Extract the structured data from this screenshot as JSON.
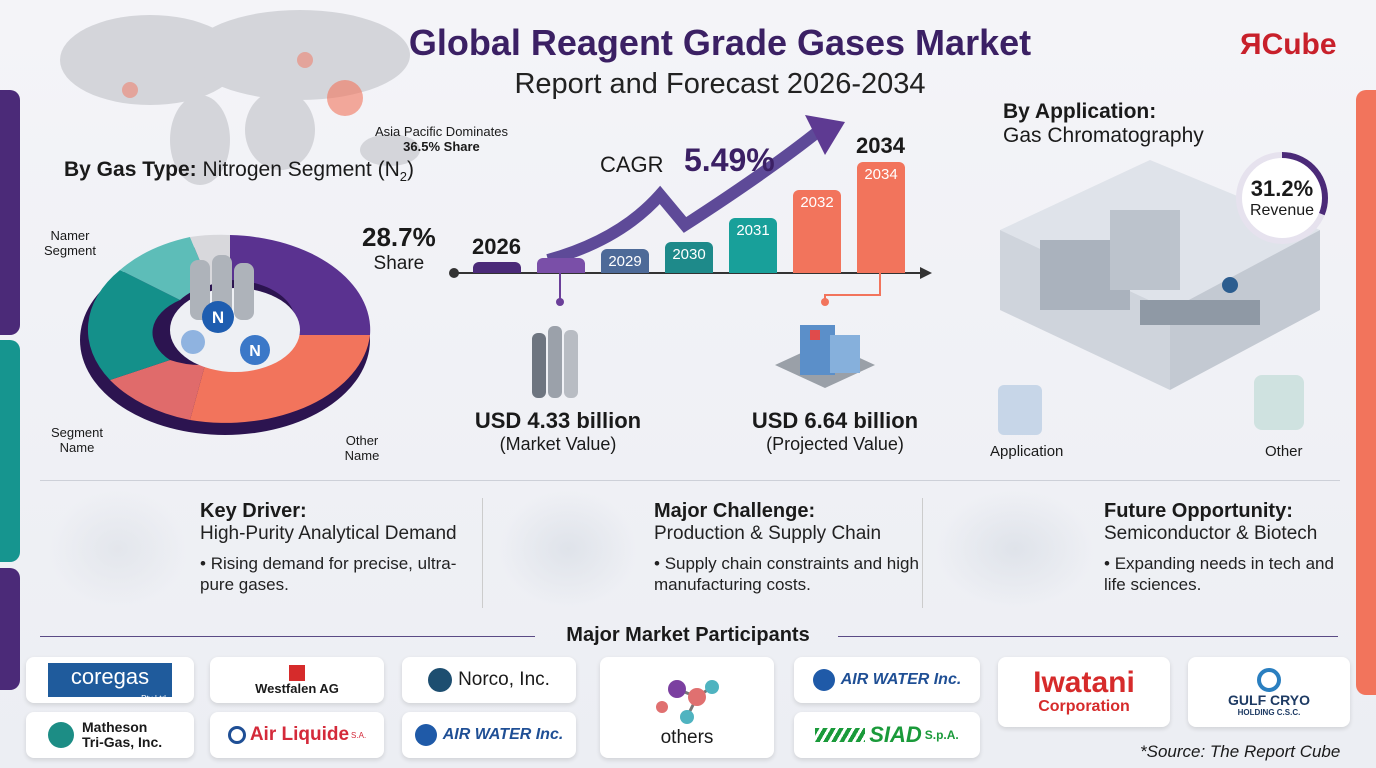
{
  "header": {
    "title": "Global Reagent Grade Gases Market",
    "subtitle": "Report and Forecast 2026-2034",
    "logo": "ЯCube"
  },
  "map": {
    "label": "Asia Pacific Dominates",
    "share": "36.5% Share"
  },
  "gas_type": {
    "heading": "By Gas Type:",
    "segment": "Nitrogen Segment (N",
    "sub": "2",
    "close": ")",
    "share_value": "28.7%",
    "share_label": "Share",
    "labels": [
      "Namer Segment",
      "Segment Name",
      "Other Name"
    ],
    "molecule": "N"
  },
  "timeline": {
    "cagr_label": "CAGR",
    "cagr_value": "5.49%",
    "start_year": "2026",
    "end_year": "2034",
    "bars": [
      "",
      "",
      "2029",
      "2030",
      "2031",
      "2032",
      "2034"
    ],
    "start_value": "USD 4.33 billion",
    "start_caption": "(Market Value)",
    "end_value": "USD 6.64 billion",
    "end_caption": "(Projected Value)"
  },
  "application": {
    "heading": "By Application:",
    "name": "Gas Chromatography",
    "pct": "31.2%",
    "pct_label": "Revenue",
    "icons": [
      "Application",
      "Other"
    ]
  },
  "insights": [
    {
      "title": "Key Driver:",
      "subtitle": "High-Purity Analytical Demand",
      "bullet": "Rising demand for precise, ultra-pure gases."
    },
    {
      "title": "Major Challenge:",
      "subtitle": "Production & Supply Chain",
      "bullet": "Supply chain constraints and high manufacturing costs."
    },
    {
      "title": "Future Opportunity:",
      "subtitle": "Semiconductor & Biotech",
      "bullet": "Expanding needs in tech and life sciences."
    }
  ],
  "participants": {
    "heading": "Major Market Participants",
    "companies": [
      "coregas",
      "Pty Ltd",
      "Westfalen AG",
      "Norco, Inc.",
      "Matheson Tri-Gas, Inc.",
      "Air Liquide",
      "S.A.",
      "AIR WATER Inc.",
      "others",
      "AIR WATER Inc.",
      "SIAD",
      "S.p.A.",
      "Iwatani",
      "Corporation",
      "GULF CRYO",
      "HOLDING C.S.C."
    ]
  },
  "source": "*Source: The Report Cube",
  "colors": {
    "purple": "#4b2a78",
    "teal": "#16958f",
    "coral": "#f2745c"
  }
}
